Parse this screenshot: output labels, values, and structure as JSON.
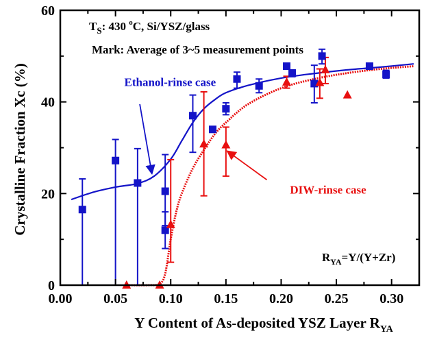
{
  "chart_data": {
    "type": "scatter",
    "xlabel": "Y Content of As-deposited YSZ Layer R",
    "xlabel_sub": "YA",
    "ylabel": "Crystalline Fraction Xc (%)",
    "xlim": [
      0.0,
      0.325
    ],
    "ylim": [
      0,
      60
    ],
    "x_ticks": [
      0.0,
      0.05,
      0.1,
      0.15,
      0.2,
      0.25,
      0.3
    ],
    "x_tick_labels": [
      "0.00",
      "0.05",
      "0.10",
      "0.15",
      "0.20",
      "0.25",
      "0.30"
    ],
    "y_ticks": [
      0,
      20,
      40,
      60
    ],
    "y_tick_labels": [
      "0",
      "20",
      "40",
      "60"
    ],
    "grid": false,
    "annotations": {
      "ts_line": {
        "main": "T",
        "sub": "S",
        "rest": ": 430 ",
        "sup": "o",
        "rest2": "C,  Si/YSZ/glass"
      },
      "mark_line": "Mark: Average of 3~5 measurement points",
      "formula": {
        "main": "R",
        "sub": "YA",
        "rest": "=Y/(Y+Zr)"
      }
    },
    "series": [
      {
        "name": "Ethanol-rinse case",
        "color": "#1414c8",
        "marker": "square",
        "fit_style": "solid",
        "points": [
          {
            "x": 0.02,
            "y": 16.5,
            "lo": 0,
            "hi": 23.2
          },
          {
            "x": 0.05,
            "y": 27.2,
            "lo": 0,
            "hi": 31.8
          },
          {
            "x": 0.07,
            "y": 22.3,
            "lo": 0,
            "hi": 29.8
          },
          {
            "x": 0.095,
            "y": 20.5,
            "lo": 13.0,
            "hi": 28.5
          },
          {
            "x": 0.095,
            "y": 12.0,
            "lo": 8.0,
            "hi": 16.0
          },
          {
            "x": 0.12,
            "y": 37.0,
            "lo": 29.0,
            "hi": 41.5
          },
          {
            "x": 0.138,
            "y": 34.0,
            "lo": 34.0,
            "hi": 34.0
          },
          {
            "x": 0.15,
            "y": 38.5,
            "lo": 37.2,
            "hi": 39.8
          },
          {
            "x": 0.16,
            "y": 45.0,
            "lo": 43.0,
            "hi": 46.5
          },
          {
            "x": 0.18,
            "y": 43.5,
            "lo": 42.0,
            "hi": 45.0
          },
          {
            "x": 0.205,
            "y": 47.8,
            "lo": 47.2,
            "hi": 48.4
          },
          {
            "x": 0.21,
            "y": 46.3,
            "lo": 45.5,
            "hi": 47.0
          },
          {
            "x": 0.23,
            "y": 44.0,
            "lo": 39.8,
            "hi": 48.0
          },
          {
            "x": 0.237,
            "y": 50.0,
            "lo": 48.3,
            "hi": 51.5
          },
          {
            "x": 0.28,
            "y": 47.8,
            "lo": 47.3,
            "hi": 48.3
          },
          {
            "x": 0.295,
            "y": 46.0,
            "lo": 45.2,
            "hi": 46.9
          }
        ],
        "fit": [
          [
            0.01,
            18.7
          ],
          [
            0.03,
            20.3
          ],
          [
            0.05,
            21.4
          ],
          [
            0.07,
            22.2
          ],
          [
            0.085,
            23.8
          ],
          [
            0.1,
            27.5
          ],
          [
            0.11,
            31.5
          ],
          [
            0.12,
            35.5
          ],
          [
            0.13,
            38.5
          ],
          [
            0.14,
            40.5
          ],
          [
            0.15,
            42.0
          ],
          [
            0.17,
            43.6
          ],
          [
            0.2,
            45.2
          ],
          [
            0.23,
            46.2
          ],
          [
            0.26,
            47.0
          ],
          [
            0.29,
            47.6
          ],
          [
            0.32,
            48.3
          ]
        ]
      },
      {
        "name": "DIW-rinse case",
        "color": "#e81010",
        "marker": "triangle",
        "fit_style": "dotted",
        "points": [
          {
            "x": 0.06,
            "y": 0.0,
            "lo": 0.0,
            "hi": 0.0
          },
          {
            "x": 0.09,
            "y": 0.0,
            "lo": 0.0,
            "hi": 0.0
          },
          {
            "x": 0.1,
            "y": 13.2,
            "lo": 5.0,
            "hi": 27.4
          },
          {
            "x": 0.13,
            "y": 30.8,
            "lo": 19.5,
            "hi": 42.2
          },
          {
            "x": 0.15,
            "y": 30.6,
            "lo": 23.8,
            "hi": 34.5
          },
          {
            "x": 0.205,
            "y": 44.3,
            "lo": 43.0,
            "hi": 45.6
          },
          {
            "x": 0.235,
            "y": 44.2,
            "lo": 40.8,
            "hi": 47.2
          },
          {
            "x": 0.24,
            "y": 47.0,
            "lo": 44.0,
            "hi": 49.7
          },
          {
            "x": 0.26,
            "y": 41.5,
            "lo": 41.5,
            "hi": 41.5
          }
        ],
        "fit": [
          [
            0.06,
            0.0
          ],
          [
            0.08,
            0.0
          ],
          [
            0.09,
            0.3
          ],
          [
            0.095,
            2.5
          ],
          [
            0.1,
            10.0
          ],
          [
            0.105,
            16.0
          ],
          [
            0.11,
            20.0
          ],
          [
            0.12,
            25.5
          ],
          [
            0.13,
            29.5
          ],
          [
            0.14,
            33.0
          ],
          [
            0.15,
            35.5
          ],
          [
            0.17,
            39.5
          ],
          [
            0.2,
            43.0
          ],
          [
            0.23,
            45.0
          ],
          [
            0.26,
            46.3
          ],
          [
            0.29,
            47.2
          ],
          [
            0.32,
            47.8
          ]
        ]
      }
    ],
    "series_labels": [
      {
        "text": "Ethanol-rinse case",
        "color": "#1414c8",
        "x": 0.058,
        "y": 43.5,
        "arrow_to": [
          0.083,
          24.3
        ],
        "arrow_from": [
          0.072,
          39.5
        ]
      },
      {
        "text": "DIW-rinse case",
        "color": "#e81010",
        "x": 0.208,
        "y": 20.0,
        "arrow_to": [
          0.151,
          29.3
        ],
        "arrow_from": [
          0.187,
          23.0
        ]
      }
    ]
  }
}
